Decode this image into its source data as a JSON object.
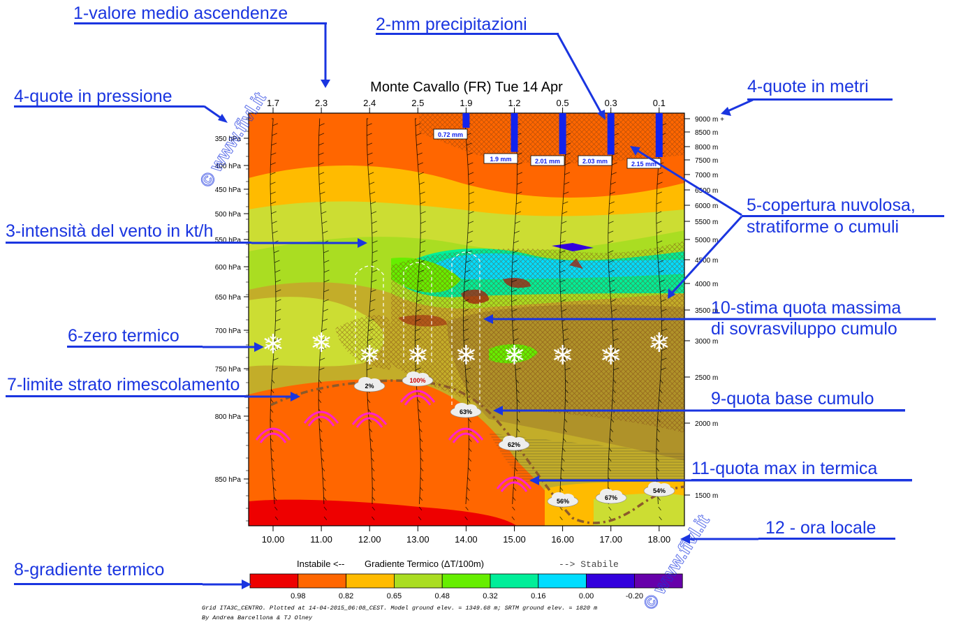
{
  "chart_data": {
    "type": "heatmap",
    "title": "Monte Cavallo (FR) Tue 14 Apr",
    "hours": [
      "10.00",
      "11.00",
      "12.00",
      "13.00",
      "14.00",
      "15.00",
      "16.00",
      "17.00",
      "18.00"
    ],
    "mean_updraft": [
      "1.7",
      "2.3",
      "2.4",
      "2.5",
      "1.9",
      "1.2",
      "0.5",
      "0.3",
      "0.1"
    ],
    "pressure_ticks": [
      "350 hPa",
      "400 hPa",
      "450 hPa",
      "500 hPa",
      "550 hPa",
      "600 hPa",
      "650 hPa",
      "700 hPa",
      "750 hPa",
      "800 hPa",
      "850 hPa"
    ],
    "altitude_ticks": [
      "9000 m +",
      "8500 m",
      "8000 m",
      "7500 m",
      "7000 m",
      "6500 m",
      "6000 m",
      "5500 m",
      "5000 m",
      "4500 m",
      "4000 m",
      "3500 m",
      "3000 m",
      "2500 m",
      "2000 m",
      "1500 m"
    ],
    "precipitation_labels": [
      "0.72 mm",
      "1.9 mm",
      "2.01 mm",
      "2.03 mm",
      "2.15 mm"
    ],
    "precipitation_mm": [
      0,
      0,
      0,
      0,
      0.72,
      1.9,
      2.01,
      2.03,
      2.15
    ],
    "cumulus_cover": [
      "2%",
      "100%",
      "63%",
      "62%",
      "56%",
      "67%",
      "54%"
    ],
    "legend": {
      "left_text": "Instabile <--",
      "center_text": "Gradiente Termico (ΔT/100m)",
      "right_text": "--> Stabile",
      "ticks": [
        "0.98",
        "0.82",
        "0.65",
        "0.48",
        "0.32",
        "0.16",
        "0.00",
        "-0.20"
      ],
      "colors": [
        "#ee0000",
        "#ff6600",
        "#ffbb00",
        "#aadd22",
        "#66ee00",
        "#00ee99",
        "#00ddff",
        "#3300dd",
        "#6600aa"
      ]
    },
    "footer": [
      "Grid ITA3C_CENTRO. Plotted at 14-04-2015_06:08_CEST. Model ground elev. = 1349.68 m; SRTM ground elev. = 1820 m",
      "By Andrea Barcellona & TJ Olney"
    ],
    "watermark": "© www.fivl.it"
  },
  "annotations": {
    "a1": "1-valore medio ascendenze",
    "a2": "2-mm precipitazioni",
    "a3": "3-intensità del vento in kt/h",
    "a4p": "4-quote in pressione",
    "a4m": "4-quote in metri",
    "a5a": "5-copertura nuvolosa,",
    "a5b": "stratiforme o cumuli",
    "a6": "6-zero termico",
    "a7": "7-limite strato rimescolamento",
    "a8": "8-gradiente termico",
    "a9": "9-quota base cumulo",
    "a10a": "10-stima quota massima",
    "a10b": "di sovrasviluppo cumulo",
    "a11": "11-quota max in termica",
    "a12": "12 - ora locale"
  },
  "colors": {
    "annotation": "#1a35e0",
    "paraglider": "#ff22cc",
    "precip_bar": "#1122ee",
    "mixing_line": "#8b5a2b"
  }
}
